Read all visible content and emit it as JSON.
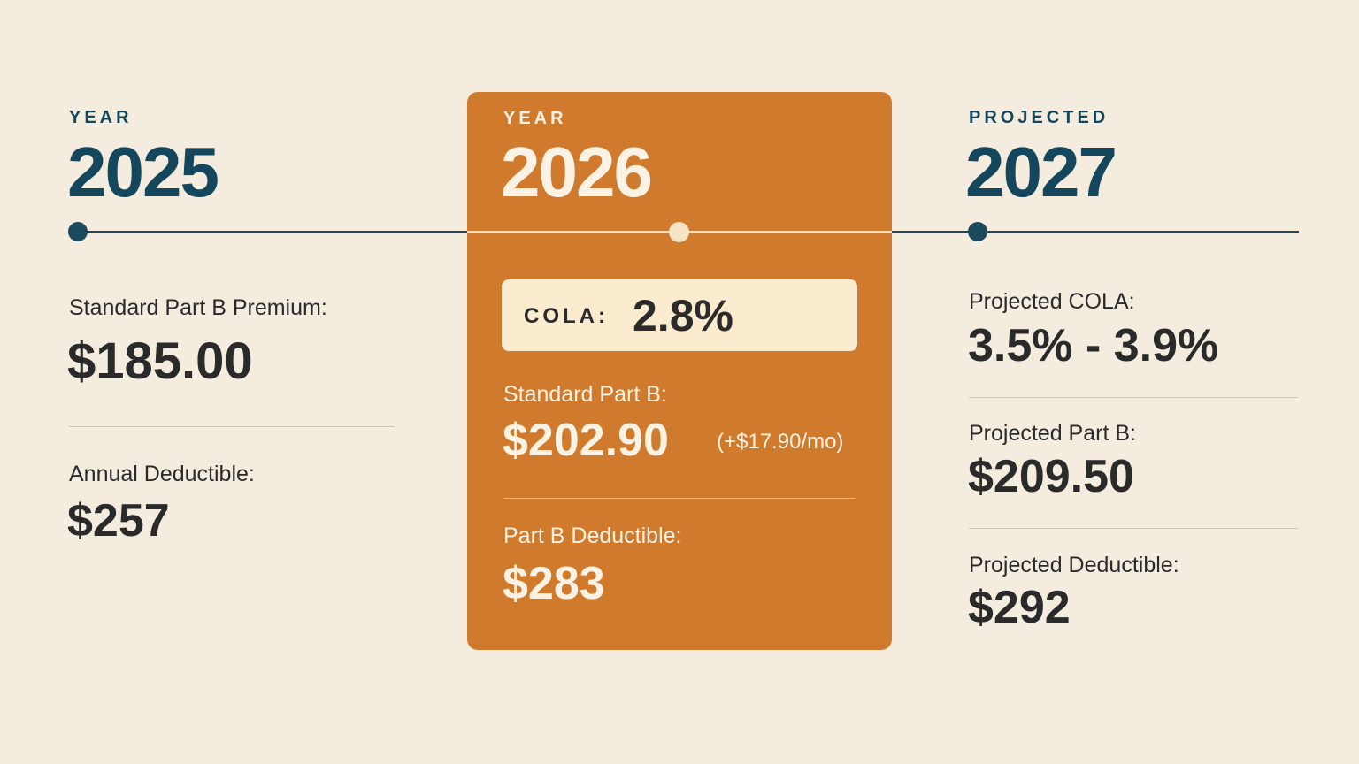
{
  "col_2025": {
    "kicker": "YEAR",
    "year": "2025",
    "premium_label": "Standard Part B Premium:",
    "premium_value": "$185.00",
    "deductible_label": "Annual Deductible:",
    "deductible_value": "$257"
  },
  "col_2026": {
    "kicker": "YEAR",
    "year": "2026",
    "cola_label": "COLA:",
    "cola_value": "2.8%",
    "premium_label": "Standard Part B:",
    "premium_value": "$202.90",
    "premium_delta": "(+$17.90/mo)",
    "deductible_label": "Part B Deductible:",
    "deductible_value": "$283"
  },
  "col_2027": {
    "kicker": "PROJECTED",
    "year": "2027",
    "cola_label": "Projected COLA:",
    "cola_value": "3.5% - 3.9%",
    "premium_label": "Projected Part B:",
    "premium_value": "$209.50",
    "deductible_label": "Projected Deductible:",
    "deductible_value": "$292"
  },
  "colors": {
    "background": "#f4ecdf",
    "teal": "#15475c",
    "highlight_card": "#d07a2d",
    "cola_box": "#fbecd0",
    "text_dark": "#2a2a2a",
    "text_cream": "#fbf2e3"
  }
}
